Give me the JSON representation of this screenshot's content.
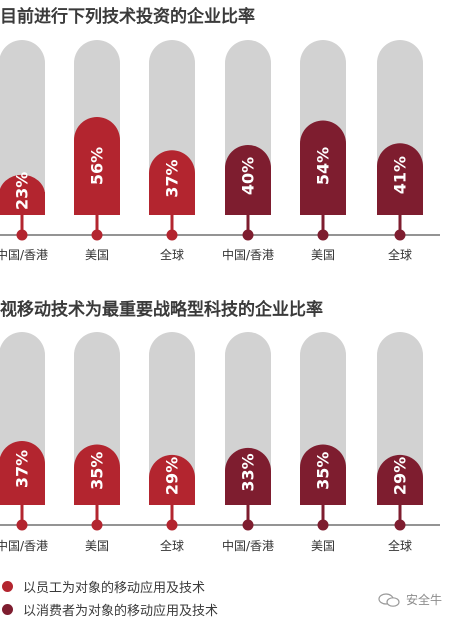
{
  "colors": {
    "employee": "#b3252f",
    "consumer": "#7e1d2f",
    "track": "#d2d2d2"
  },
  "legend": [
    {
      "label": "以员工为对象的移动应用及技术",
      "color": "#b3252f"
    },
    {
      "label": "以消费者为对象的移动应用及技术",
      "color": "#7e1d2f"
    }
  ],
  "watermark": "安全牛",
  "chart_data": [
    {
      "type": "bar",
      "title": "目前进行下列技术投资的企业比率",
      "categories": [
        "中国/香港",
        "美国",
        "全球",
        "中国/香港",
        "美国",
        "全球"
      ],
      "groups": [
        "employee",
        "employee",
        "employee",
        "consumer",
        "consumer",
        "consumer"
      ],
      "values": [
        23,
        56,
        37,
        40,
        54,
        41
      ],
      "labels": [
        "23%",
        "56%",
        "37%",
        "40%",
        "54%",
        "41%"
      ],
      "ylim": [
        0,
        100
      ]
    },
    {
      "type": "bar",
      "title": "视移动技术为最重要战略型科技的企业比率",
      "categories": [
        "中国/香港",
        "美国",
        "全球",
        "中国/香港",
        "美国",
        "全球"
      ],
      "groups": [
        "employee",
        "employee",
        "employee",
        "consumer",
        "consumer",
        "consumer"
      ],
      "values": [
        37,
        35,
        29,
        33,
        35,
        29
      ],
      "labels": [
        "37%",
        "35%",
        "29%",
        "33%",
        "35%",
        "29%"
      ],
      "ylim": [
        0,
        100
      ]
    }
  ]
}
